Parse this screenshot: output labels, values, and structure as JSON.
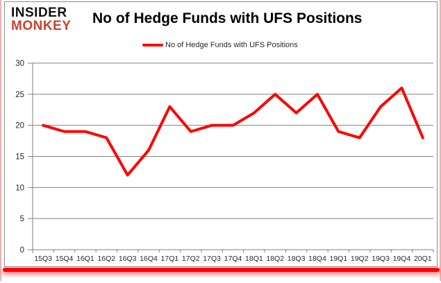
{
  "logo": {
    "line1": "INSIDER",
    "line2": "MONKEY"
  },
  "header": {
    "title": "No of Hedge Funds with UFS Positions"
  },
  "legend": {
    "label": "No of Hedge Funds with UFS Positions"
  },
  "colors": {
    "series_red": "#FF0000",
    "logo_red": "#C8432E",
    "grid_gray": "#808080",
    "axis_text": "#262626",
    "accent_bar_red": "#FF0000",
    "page_edge_pink": "#F2B1B1"
  },
  "chart_data": {
    "type": "line",
    "title": "No of Hedge Funds with UFS Positions",
    "categories": [
      "15Q3",
      "15Q4",
      "16Q1",
      "16Q2",
      "16Q3",
      "16Q4",
      "17Q1",
      "17Q2",
      "17Q3",
      "17Q4",
      "18Q1",
      "18Q2",
      "18Q3",
      "18Q4",
      "19Q1",
      "19Q2",
      "19Q3",
      "19Q4",
      "20Q1"
    ],
    "series": [
      {
        "name": "No of Hedge Funds with UFS Positions",
        "color": "#FF0000",
        "values": [
          20,
          19,
          19,
          18,
          12,
          16,
          23,
          19,
          20,
          20,
          22,
          25,
          22,
          25,
          19,
          18,
          23,
          26,
          18
        ]
      }
    ],
    "xlabel": "",
    "ylabel": "",
    "ylim": [
      0,
      30
    ],
    "yticks": [
      0,
      5,
      10,
      15,
      20,
      25,
      30
    ],
    "grid": "horizontal",
    "legend_position": "top-center"
  }
}
